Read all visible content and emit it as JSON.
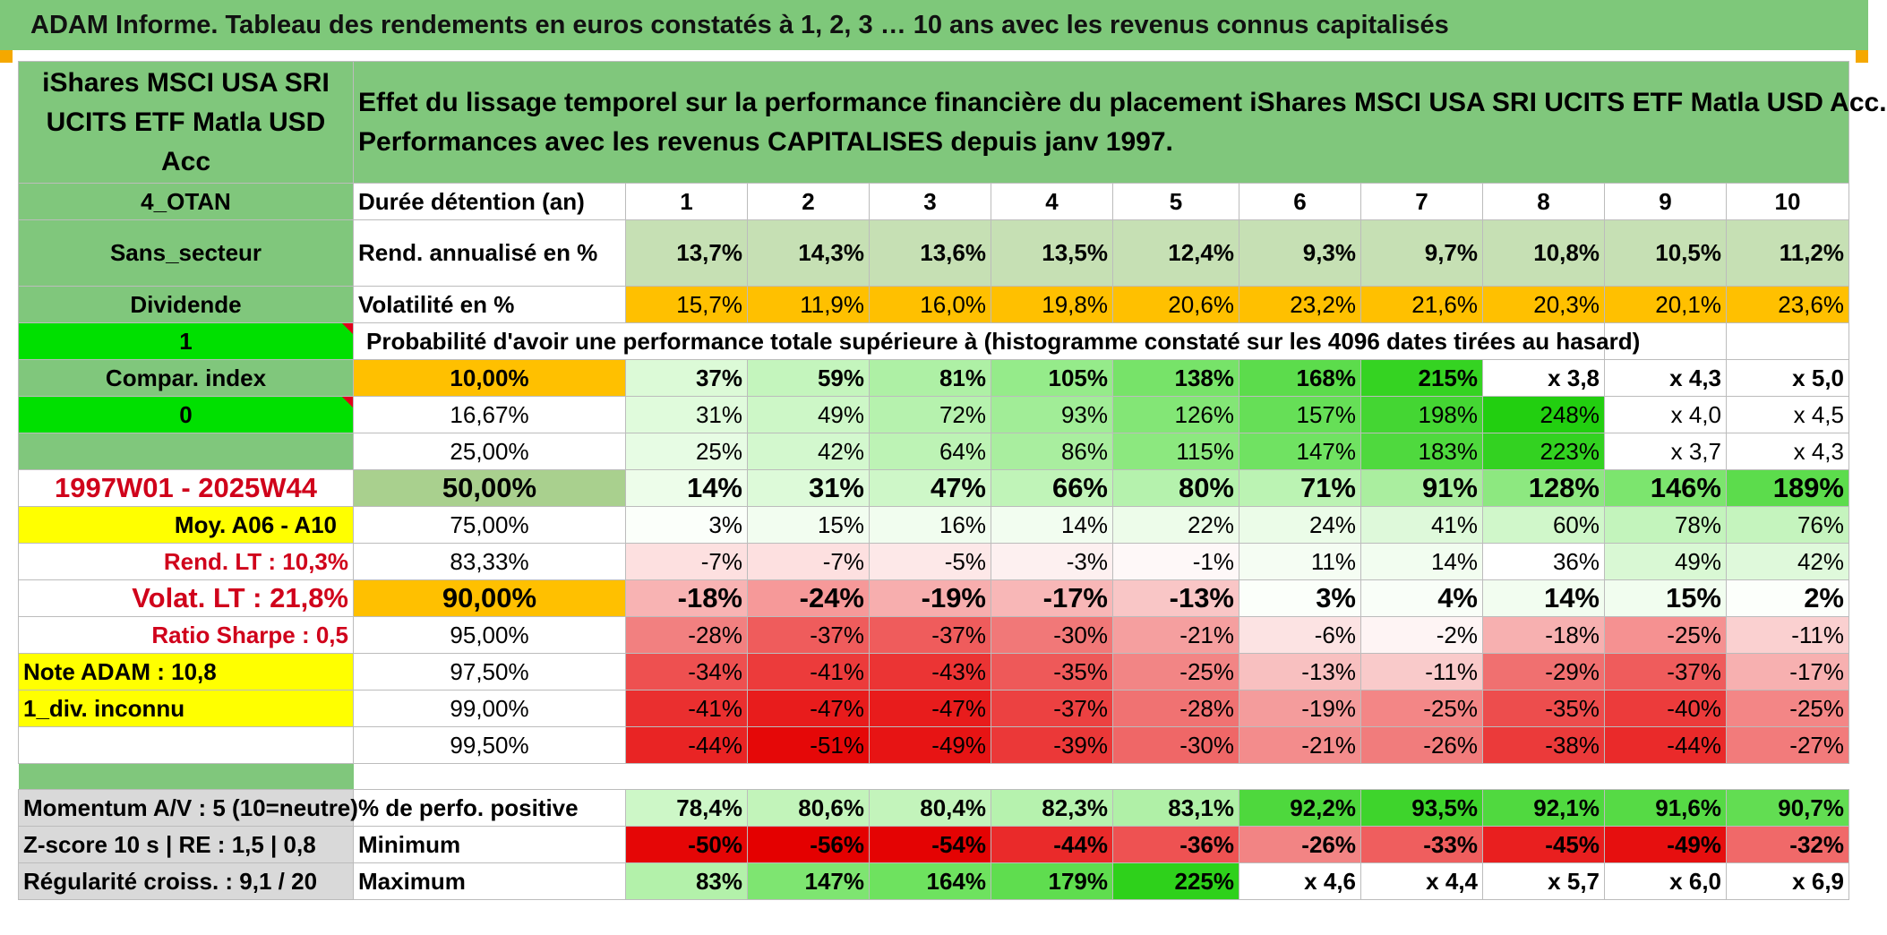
{
  "title": "ADAM Informe. Tableau des rendements en euros constatés à 1, 2, 3 … 10 ans avec les revenus connus capitalisés",
  "fund_name": "iShares MSCI USA SRI UCITS ETF Matla USD Acc",
  "description": [
    "Effet du lissage temporel sur la performance financière du placement iShares MSCI USA SRI UCITS ETF Matla USD Acc.",
    "Performances avec les revenus CAPITALISES depuis janv 1997."
  ],
  "side_labels": {
    "otan": "4_OTAN",
    "sector": "Sans_secteur",
    "dividend": "Dividende",
    "one": "1",
    "compar": "Compar. index",
    "zero": "0",
    "period": "1997W01 - 2025W44",
    "moy": "Moy. A06 - A10",
    "rend_lt": "Rend. LT :   10,3%",
    "volat_lt": "Volat. LT :   21,8%",
    "sharpe": "Ratio Sharpe :    0,5",
    "note": "Note ADAM : 10,8",
    "div_unknown": "1_div. inconnu",
    "momentum": "Momentum A/V : 5 (10=neutre)",
    "zscore": "Z-score 10 s | RE : 1,5 | 0,8",
    "regularite": "Régularité croiss. : 9,1 / 20"
  },
  "row_labels": {
    "duration": "Durée détention (an)",
    "rend": "Rend. annualisé en %",
    "vol": "Volatilité en %",
    "proba": "Probabilité d'avoir une performance totale supérieure à (histogramme constaté sur les 4096 dates tirées au hasard)",
    "positive": "% de perfo. positive",
    "minimum": "Minimum",
    "maximum": "Maximum"
  },
  "years": [
    "1",
    "2",
    "3",
    "4",
    "5",
    "6",
    "7",
    "8",
    "9",
    "10"
  ],
  "rend": [
    "13,7%",
    "14,3%",
    "13,6%",
    "13,5%",
    "12,4%",
    "9,3%",
    "9,7%",
    "10,8%",
    "10,5%",
    "11,2%"
  ],
  "vol": [
    "15,7%",
    "11,9%",
    "16,0%",
    "19,8%",
    "20,6%",
    "23,2%",
    "21,6%",
    "20,3%",
    "20,1%",
    "23,6%"
  ],
  "quantiles": [
    {
      "p": "10,00%",
      "values": [
        "37%",
        "59%",
        "81%",
        "105%",
        "138%",
        "168%",
        "215%",
        "x 3,8",
        "x 4,3",
        "x 5,0"
      ]
    },
    {
      "p": "16,67%",
      "values": [
        "31%",
        "49%",
        "72%",
        "93%",
        "126%",
        "157%",
        "198%",
        "248%",
        "x 4,0",
        "x 4,5"
      ]
    },
    {
      "p": "25,00%",
      "values": [
        "25%",
        "42%",
        "64%",
        "86%",
        "115%",
        "147%",
        "183%",
        "223%",
        "x 3,7",
        "x 4,3"
      ]
    },
    {
      "p": "50,00%",
      "values": [
        "14%",
        "31%",
        "47%",
        "66%",
        "80%",
        "71%",
        "91%",
        "128%",
        "146%",
        "189%"
      ]
    },
    {
      "p": "75,00%",
      "values": [
        "3%",
        "15%",
        "16%",
        "14%",
        "22%",
        "24%",
        "41%",
        "60%",
        "78%",
        "76%"
      ]
    },
    {
      "p": "83,33%",
      "values": [
        "-7%",
        "-7%",
        "-5%",
        "-3%",
        "-1%",
        "11%",
        "14%",
        "36%",
        "49%",
        "42%"
      ]
    },
    {
      "p": "90,00%",
      "values": [
        "-18%",
        "-24%",
        "-19%",
        "-17%",
        "-13%",
        "3%",
        "4%",
        "14%",
        "15%",
        "2%"
      ]
    },
    {
      "p": "95,00%",
      "values": [
        "-28%",
        "-37%",
        "-37%",
        "-30%",
        "-21%",
        "-6%",
        "-2%",
        "-18%",
        "-25%",
        "-11%"
      ]
    },
    {
      "p": "97,50%",
      "values": [
        "-34%",
        "-41%",
        "-43%",
        "-35%",
        "-25%",
        "-13%",
        "-11%",
        "-29%",
        "-37%",
        "-17%"
      ]
    },
    {
      "p": "99,00%",
      "values": [
        "-41%",
        "-47%",
        "-47%",
        "-37%",
        "-28%",
        "-19%",
        "-25%",
        "-35%",
        "-40%",
        "-25%"
      ]
    },
    {
      "p": "99,50%",
      "values": [
        "-44%",
        "-51%",
        "-49%",
        "-39%",
        "-30%",
        "-21%",
        "-26%",
        "-38%",
        "-44%",
        "-27%"
      ]
    }
  ],
  "positive": [
    "78,4%",
    "80,6%",
    "80,4%",
    "82,3%",
    "83,1%",
    "92,2%",
    "93,5%",
    "92,1%",
    "91,6%",
    "90,7%"
  ],
  "minimum": [
    "-50%",
    "-56%",
    "-54%",
    "-44%",
    "-36%",
    "-26%",
    "-33%",
    "-45%",
    "-49%",
    "-32%"
  ],
  "maximum": [
    "83%",
    "147%",
    "164%",
    "179%",
    "225%",
    "x 4,6",
    "x 4,4",
    "x 5,7",
    "x 6,0",
    "x 6,9"
  ],
  "colors": {
    "title_green": "#7ec87a",
    "label_green": "#80c77c",
    "bright_green": "#00e000",
    "highlight_yellow": "#ffff00",
    "vol_orange": "#ffc000",
    "rend_green": "#c6e0b4",
    "median_green": "#a9d08e",
    "label_red": "#d0021b"
  }
}
